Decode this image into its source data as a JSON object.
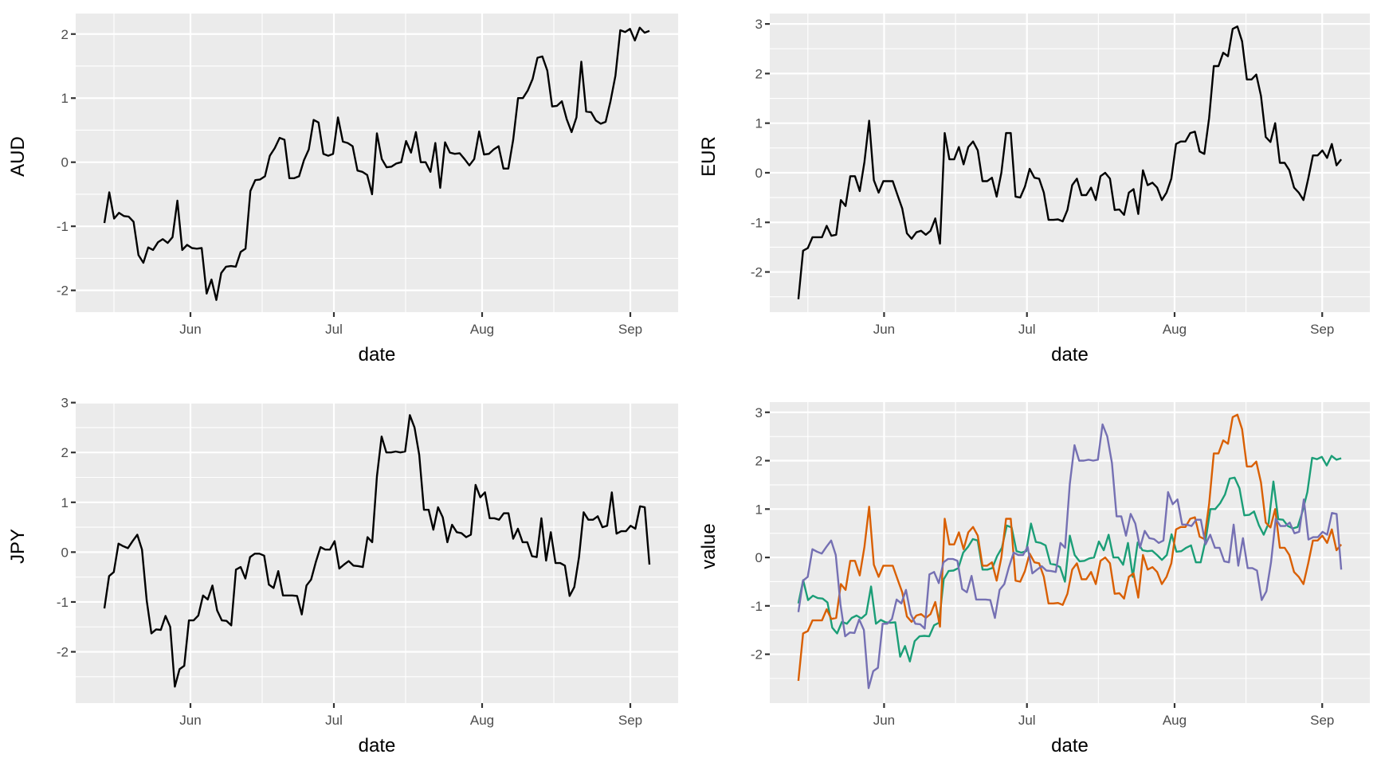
{
  "chart_data": [
    {
      "type": "line",
      "panel": "top-left",
      "xlabel": "date",
      "ylabel": "AUD",
      "series_keys": [
        "AUD"
      ],
      "yticks": [
        -2,
        -1,
        0,
        1,
        2
      ],
      "ytick_labels": [
        "-2",
        "-1",
        "0",
        "1",
        "2"
      ],
      "ylim": [
        -2.34,
        2.32
      ],
      "grid": true
    },
    {
      "type": "line",
      "panel": "top-right",
      "xlabel": "date",
      "ylabel": "EUR",
      "series_keys": [
        "EUR"
      ],
      "yticks": [
        -2,
        -1,
        0,
        1,
        2,
        3
      ],
      "ytick_labels": [
        "-2",
        "-1",
        "0",
        "1",
        "2",
        "3"
      ],
      "ylim": [
        -2.81,
        3.21
      ],
      "grid": true
    },
    {
      "type": "line",
      "panel": "bottom-left",
      "xlabel": "date",
      "ylabel": "JPY",
      "series_keys": [
        "JPY"
      ],
      "yticks": [
        -2,
        -1,
        0,
        1,
        2,
        3
      ],
      "ytick_labels": [
        "-2",
        "-1",
        "0",
        "1",
        "2",
        "3"
      ],
      "ylim": [
        -3.03,
        3.01
      ],
      "grid": true
    },
    {
      "type": "line",
      "panel": "bottom-right",
      "xlabel": "date",
      "ylabel": "value",
      "series_keys": [
        "AUD",
        "EUR",
        "JPY"
      ],
      "yticks": [
        -2,
        -1,
        0,
        1,
        2,
        3
      ],
      "ytick_labels": [
        "-2",
        "-1",
        "0",
        "1",
        "2",
        "3"
      ],
      "ylim": [
        -3.01,
        3.21
      ],
      "grid": true,
      "legend": "none"
    }
  ],
  "x_axis": {
    "ticks": [
      {
        "date": "Jun 1",
        "label": "Jun"
      },
      {
        "date": "Jul 1",
        "label": "Jul"
      },
      {
        "date": "Aug 1",
        "label": "Aug"
      },
      {
        "date": "Sep 1",
        "label": "Sep"
      }
    ],
    "minor_ticks": [
      "May 16",
      "Jun 16",
      "Jul 16",
      "Aug 16"
    ],
    "xlim": [
      "May 8",
      "Sep 11"
    ]
  },
  "series": {
    "AUD": {
      "start": "May 14",
      "end": "Sep 5",
      "color_single": "#000000",
      "color_combined": "#1b9e77",
      "values": [
        -0.95,
        -0.47,
        -0.88,
        -0.79,
        -0.84,
        -0.85,
        -0.93,
        -1.45,
        -1.57,
        -1.33,
        -1.37,
        -1.25,
        -1.2,
        -1.26,
        -1.17,
        -0.6,
        -1.37,
        -1.29,
        -1.34,
        -1.35,
        -1.34,
        -2.05,
        -1.83,
        -2.15,
        -1.73,
        -1.63,
        -1.62,
        -1.63,
        -1.4,
        -1.35,
        -0.45,
        -0.28,
        -0.27,
        -0.22,
        0.1,
        0.22,
        0.38,
        0.35,
        -0.25,
        -0.25,
        -0.22,
        0.03,
        0.2,
        0.66,
        0.62,
        0.13,
        0.1,
        0.13,
        0.7,
        0.32,
        0.3,
        0.25,
        -0.13,
        -0.15,
        -0.2,
        -0.5,
        0.45,
        0.05,
        -0.08,
        -0.07,
        -0.02,
        0.0,
        0.33,
        0.15,
        0.47,
        0.0,
        0.0,
        -0.15,
        0.3,
        -0.4,
        0.31,
        0.15,
        0.13,
        0.14,
        0.05,
        -0.05,
        0.05,
        0.48,
        0.12,
        0.13,
        0.2,
        0.25,
        -0.1,
        -0.1,
        0.35,
        1.0,
        1.0,
        1.12,
        1.3,
        1.63,
        1.65,
        1.43,
        0.87,
        0.88,
        0.95,
        0.67,
        0.47,
        0.7,
        1.57,
        0.79,
        0.78,
        0.65,
        0.6,
        0.63,
        0.95,
        1.35,
        2.06,
        2.03,
        2.08,
        1.9,
        2.1,
        2.02,
        2.05
      ]
    },
    "EUR": {
      "start": "May 14",
      "end": "Sep 5",
      "color_single": "#000000",
      "color_combined": "#d95f02",
      "values": [
        -2.55,
        -1.57,
        -1.52,
        -1.3,
        -1.3,
        -1.3,
        -1.07,
        -1.27,
        -1.25,
        -0.55,
        -0.67,
        -0.07,
        -0.07,
        -0.37,
        0.22,
        1.05,
        -0.15,
        -0.4,
        -0.17,
        -0.17,
        -0.17,
        -0.45,
        -0.72,
        -1.22,
        -1.33,
        -1.2,
        -1.17,
        -1.25,
        -1.17,
        -0.92,
        -1.43,
        0.8,
        0.27,
        0.27,
        0.52,
        0.17,
        0.52,
        0.63,
        0.45,
        -0.17,
        -0.17,
        -0.1,
        -0.48,
        0.0,
        0.8,
        0.8,
        -0.48,
        -0.5,
        -0.28,
        0.08,
        -0.1,
        -0.12,
        -0.4,
        -0.95,
        -0.95,
        -0.94,
        -0.98,
        -0.75,
        -0.25,
        -0.12,
        -0.45,
        -0.45,
        -0.3,
        -0.55,
        -0.07,
        0.0,
        -0.12,
        -0.75,
        -0.74,
        -0.85,
        -0.4,
        -0.33,
        -0.83,
        0.05,
        -0.25,
        -0.2,
        -0.3,
        -0.55,
        -0.4,
        -0.12,
        0.58,
        0.63,
        0.63,
        0.8,
        0.83,
        0.43,
        0.38,
        1.1,
        2.15,
        2.15,
        2.42,
        2.35,
        2.9,
        2.95,
        2.65,
        1.88,
        1.88,
        1.98,
        1.55,
        0.72,
        0.62,
        1.0,
        0.2,
        0.2,
        0.05,
        -0.3,
        -0.4,
        -0.55,
        -0.12,
        0.35,
        0.35,
        0.45,
        0.3,
        0.58,
        0.15,
        0.27
      ]
    },
    "JPY": {
      "start": "May 14",
      "end": "Sep 5",
      "color_single": "#000000",
      "color_combined": "#7570b3",
      "values": [
        -1.13,
        -0.48,
        -0.4,
        0.17,
        0.12,
        0.08,
        0.22,
        0.35,
        0.05,
        -0.97,
        -1.63,
        -1.55,
        -1.56,
        -1.28,
        -1.5,
        -2.7,
        -2.35,
        -2.28,
        -1.37,
        -1.37,
        -1.27,
        -0.87,
        -0.95,
        -0.67,
        -1.17,
        -1.37,
        -1.38,
        -1.47,
        -0.35,
        -0.3,
        -0.53,
        -0.1,
        -0.03,
        -0.03,
        -0.07,
        -0.65,
        -0.72,
        -0.38,
        -0.87,
        -0.87,
        -0.87,
        -0.88,
        -1.25,
        -0.67,
        -0.55,
        -0.2,
        0.1,
        0.05,
        0.05,
        0.22,
        -0.33,
        -0.25,
        -0.18,
        -0.27,
        -0.28,
        -0.3,
        0.3,
        0.2,
        1.52,
        2.32,
        2.0,
        2.0,
        2.02,
        2.0,
        2.02,
        2.75,
        2.5,
        1.95,
        0.85,
        0.85,
        0.45,
        0.9,
        0.7,
        0.2,
        0.55,
        0.4,
        0.38,
        0.3,
        0.35,
        1.35,
        1.1,
        1.2,
        0.68,
        0.68,
        0.65,
        0.78,
        0.78,
        0.27,
        0.47,
        0.2,
        0.2,
        -0.08,
        -0.1,
        0.68,
        -0.17,
        0.4,
        -0.22,
        -0.22,
        -0.27,
        -0.88,
        -0.7,
        -0.1,
        0.8,
        0.65,
        0.65,
        0.72,
        0.5,
        0.53,
        1.2,
        0.37,
        0.42,
        0.42,
        0.53,
        0.47,
        0.92,
        0.9,
        -0.25
      ]
    }
  }
}
